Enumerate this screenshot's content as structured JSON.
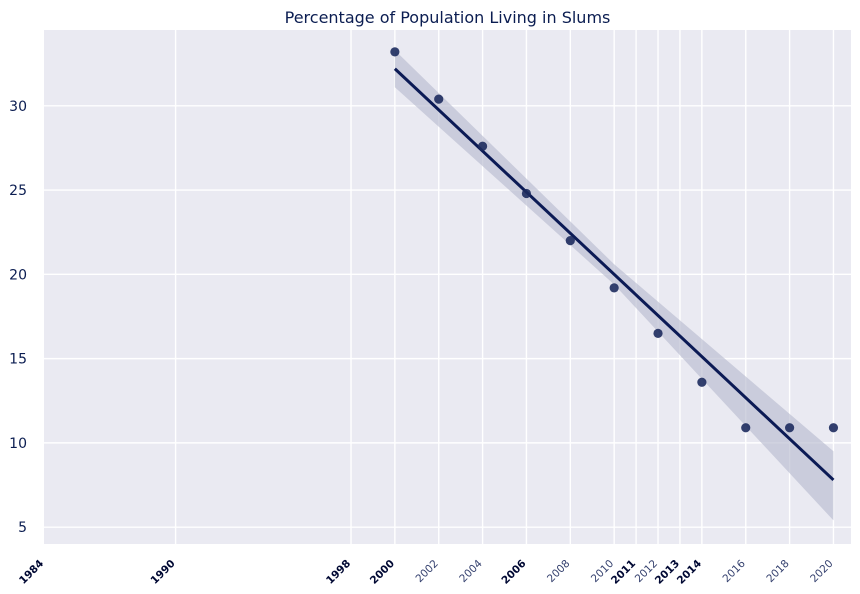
{
  "chart_data": {
    "type": "scatter",
    "title": "Percentage of Population Living in Slums",
    "xlabel": "",
    "ylabel": "",
    "xlim": [
      1984,
      2020
    ],
    "ylim": [
      4,
      34.5
    ],
    "grid": true,
    "series": [
      {
        "x": [
          2000,
          2002,
          2004,
          2006,
          2008,
          2010,
          2012,
          2014,
          2016,
          2018,
          2020
        ],
        "y": [
          33.2,
          30.4,
          27.6,
          24.8,
          22.0,
          19.2,
          16.5,
          13.6,
          10.9,
          10.9,
          10.9
        ]
      }
    ],
    "regression": {
      "x_range": [
        2000,
        2020
      ],
      "start": 32.2,
      "end": 7.8,
      "ci_start": [
        31.1,
        33.3
      ],
      "ci_end": [
        5.4,
        9.5
      ]
    },
    "x_ticks": [
      {
        "value": 1984,
        "label": "1984",
        "bold": true
      },
      {
        "value": 1990,
        "label": "1990",
        "bold": true
      },
      {
        "value": 1998,
        "label": "1998",
        "bold": true
      },
      {
        "value": 2000,
        "label": "2000",
        "bold": true
      },
      {
        "value": 2002,
        "label": "2002",
        "bold": false
      },
      {
        "value": 2004,
        "label": "2004",
        "bold": false
      },
      {
        "value": 2006,
        "label": "2006",
        "bold": true
      },
      {
        "value": 2008,
        "label": "2008",
        "bold": false
      },
      {
        "value": 2010,
        "label": "2010",
        "bold": false
      },
      {
        "value": 2011,
        "label": "2011",
        "bold": true
      },
      {
        "value": 2012,
        "label": "2012",
        "bold": false
      },
      {
        "value": 2013,
        "label": "2013",
        "bold": true
      },
      {
        "value": 2014,
        "label": "2014",
        "bold": true
      },
      {
        "value": 2016,
        "label": "2016",
        "bold": false
      },
      {
        "value": 2018,
        "label": "2018",
        "bold": false
      },
      {
        "value": 2020,
        "label": "2020",
        "bold": false
      }
    ],
    "x_gridlines": [
      1990,
      1998,
      2000,
      2002,
      2004,
      2006,
      2008,
      2010,
      2011,
      2012,
      2013,
      2014,
      2016,
      2018,
      2020
    ],
    "y_ticks": [
      5,
      10,
      15,
      20,
      25,
      30
    ],
    "colors": {
      "background": "#eaeaf2",
      "grid": "#ffffff",
      "points": "#1d2b5e",
      "line": "#0b1a55",
      "ci_band": "#b8bccf",
      "title": "#0b1d51"
    }
  }
}
